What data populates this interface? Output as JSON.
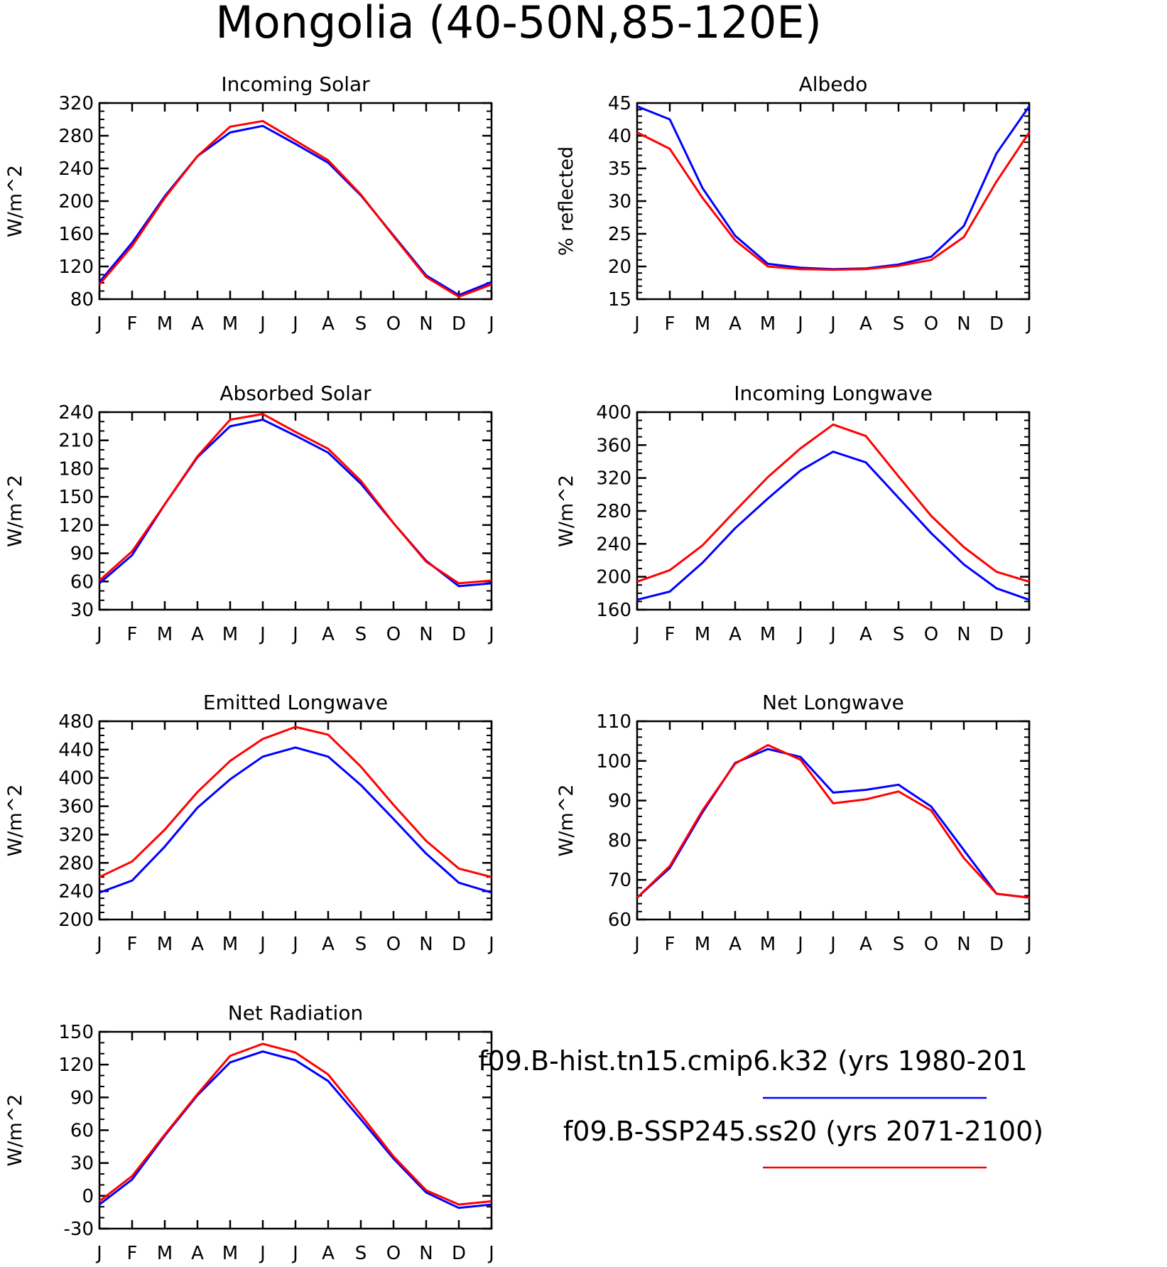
{
  "title": "Mongolia (40-50N,85-120E)",
  "colors": {
    "hist": "#0000ff",
    "ssp": "#ff0000"
  },
  "legend": {
    "hist_label": "f09.B-hist.tn15.cmip6.k32 (yrs 1980-201",
    "ssp_label": "f09.B-SSP245.ss20 (yrs 2071-2100)"
  },
  "chart_data": [
    {
      "type": "line",
      "title": "Incoming Solar",
      "ylabel": "W/m^2",
      "categories": [
        "J",
        "F",
        "M",
        "A",
        "M",
        "J",
        "J",
        "A",
        "S",
        "O",
        "N",
        "D",
        "J"
      ],
      "ylim": [
        80,
        320
      ],
      "yticks": [
        80,
        120,
        160,
        200,
        240,
        280,
        320
      ],
      "yminor": 10,
      "series": [
        {
          "key": "hist",
          "values": [
            101,
            149,
            206,
            255,
            284,
            292,
            270,
            247,
            207,
            158,
            109,
            85,
            101
          ]
        },
        {
          "key": "ssp",
          "values": [
            98,
            145,
            204,
            255,
            291,
            298,
            274,
            250,
            208,
            157,
            107,
            83,
            98
          ]
        }
      ]
    },
    {
      "type": "line",
      "title": "Albedo",
      "ylabel": "% reflected",
      "categories": [
        "J",
        "F",
        "M",
        "A",
        "M",
        "J",
        "J",
        "A",
        "S",
        "O",
        "N",
        "D",
        "J"
      ],
      "ylim": [
        15,
        45
      ],
      "yticks": [
        15,
        20,
        25,
        30,
        35,
        40,
        45
      ],
      "yminor": 1,
      "series": [
        {
          "key": "hist",
          "values": [
            44.5,
            42.5,
            32.0,
            24.7,
            20.4,
            19.8,
            19.6,
            19.7,
            20.3,
            21.5,
            26.2,
            37.3,
            44.5
          ]
        },
        {
          "key": "ssp",
          "values": [
            40.5,
            38.0,
            30.5,
            24.0,
            20.0,
            19.6,
            19.5,
            19.6,
            20.1,
            21.0,
            24.5,
            33.0,
            40.5
          ]
        }
      ]
    },
    {
      "type": "line",
      "title": "Absorbed Solar",
      "ylabel": "W/m^2",
      "categories": [
        "J",
        "F",
        "M",
        "A",
        "M",
        "J",
        "J",
        "A",
        "S",
        "O",
        "N",
        "D",
        "J"
      ],
      "ylim": [
        30,
        240
      ],
      "yticks": [
        30,
        60,
        90,
        120,
        150,
        180,
        210,
        240
      ],
      "yminor": 10,
      "series": [
        {
          "key": "hist",
          "values": [
            58,
            88,
            142,
            192,
            225,
            232,
            215,
            197,
            164,
            122,
            82,
            55,
            58
          ]
        },
        {
          "key": "ssp",
          "values": [
            61,
            92,
            142,
            193,
            232,
            238,
            219,
            201,
            167,
            122,
            81,
            58,
            61
          ]
        }
      ]
    },
    {
      "type": "line",
      "title": "Incoming Longwave",
      "ylabel": "W/m^2",
      "categories": [
        "J",
        "F",
        "M",
        "A",
        "M",
        "J",
        "J",
        "A",
        "S",
        "O",
        "N",
        "D",
        "J"
      ],
      "ylim": [
        160,
        400
      ],
      "yticks": [
        160,
        200,
        240,
        280,
        320,
        360,
        400
      ],
      "yminor": 10,
      "series": [
        {
          "key": "hist",
          "values": [
            172,
            182,
            217,
            259,
            295,
            329,
            352,
            339,
            296,
            253,
            215,
            186,
            172
          ]
        },
        {
          "key": "ssp",
          "values": [
            194,
            208,
            238,
            280,
            321,
            356,
            385,
            371,
            322,
            274,
            236,
            206,
            194
          ]
        }
      ]
    },
    {
      "type": "line",
      "title": "Emitted Longwave",
      "ylabel": "W/m^2",
      "categories": [
        "J",
        "F",
        "M",
        "A",
        "M",
        "J",
        "J",
        "A",
        "S",
        "O",
        "N",
        "D",
        "J"
      ],
      "ylim": [
        200,
        480
      ],
      "yticks": [
        200,
        240,
        280,
        320,
        360,
        400,
        440,
        480
      ],
      "yminor": 10,
      "series": [
        {
          "key": "hist",
          "values": [
            238,
            255,
            303,
            358,
            398,
            430,
            443,
            430,
            390,
            342,
            293,
            252,
            238
          ]
        },
        {
          "key": "ssp",
          "values": [
            260,
            282,
            327,
            380,
            424,
            455,
            472,
            461,
            416,
            362,
            311,
            272,
            260
          ]
        }
      ]
    },
    {
      "type": "line",
      "title": "Net Longwave",
      "ylabel": "W/m^2",
      "categories": [
        "J",
        "F",
        "M",
        "A",
        "M",
        "J",
        "J",
        "A",
        "S",
        "O",
        "N",
        "D",
        "J"
      ],
      "ylim": [
        60,
        110
      ],
      "yticks": [
        60,
        70,
        80,
        90,
        100,
        110
      ],
      "yminor": 2,
      "series": [
        {
          "key": "hist",
          "values": [
            65.5,
            73.0,
            87.0,
            99.5,
            103.0,
            101.0,
            92.0,
            92.7,
            94.0,
            88.5,
            77.5,
            66.5,
            65.5
          ]
        },
        {
          "key": "ssp",
          "values": [
            65.5,
            73.5,
            87.5,
            99.3,
            104.0,
            100.3,
            89.3,
            90.3,
            92.3,
            87.5,
            75.5,
            66.5,
            65.5
          ]
        }
      ]
    },
    {
      "type": "line",
      "title": "Net Radiation",
      "ylabel": "W/m^2",
      "categories": [
        "J",
        "F",
        "M",
        "A",
        "M",
        "J",
        "J",
        "A",
        "S",
        "O",
        "N",
        "D",
        "J"
      ],
      "ylim": [
        -30,
        150
      ],
      "yticks": [
        -30,
        0,
        30,
        60,
        90,
        120,
        150
      ],
      "yminor": 10,
      "series": [
        {
          "key": "hist",
          "values": [
            -8,
            15,
            55,
            92,
            122,
            132,
            124,
            105,
            70,
            34,
            3,
            -11,
            -8
          ]
        },
        {
          "key": "ssp",
          "values": [
            -5,
            18,
            56,
            93,
            128,
            139,
            131,
            111,
            74,
            36,
            5,
            -8,
            -5
          ]
        }
      ]
    }
  ]
}
